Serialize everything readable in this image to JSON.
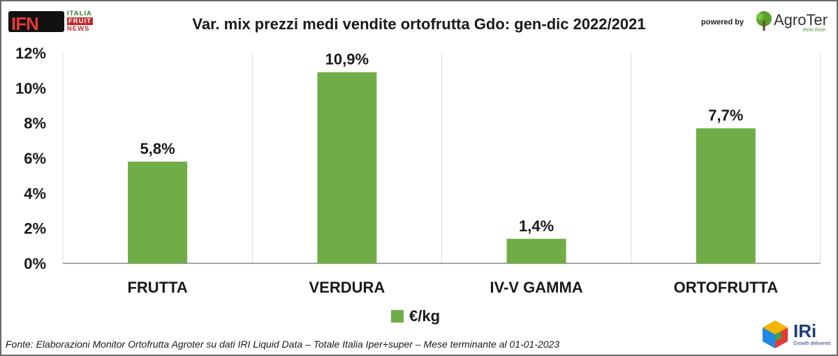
{
  "header": {
    "title": "Var. mix prezzi medi vendite ortofrutta Gdo: gen-dic 2022/2021",
    "ifn_logo": {
      "letters": "IFN",
      "line1": "ITALIA",
      "line2": "FRUIT",
      "line3": "NEWS"
    },
    "powered_by": "powered by",
    "agroter": {
      "name": "AgroTer",
      "tagline": "think fresh"
    }
  },
  "footer": {
    "source": "Fonte: Elaborazioni Monitor Ortofrutta Agroter su dati IRI Liquid Data – Totale Italia Iper+super – Mese terminante al 01-01-2023",
    "iri": {
      "name": "IRi",
      "tagline": "Growth delivered."
    }
  },
  "chart_data": {
    "type": "bar",
    "title": "Var. mix prezzi medi vendite ortofrutta Gdo: gen-dic 2022/2021",
    "categories": [
      "FRUTTA",
      "VERDURA",
      "IV-V GAMMA",
      "ORTOFRUTTA"
    ],
    "series": [
      {
        "name": "€/kg",
        "values": [
          5.8,
          10.9,
          1.4,
          7.7
        ],
        "labels": [
          "5,8%",
          "10,9%",
          "1,4%",
          "7,7%"
        ]
      }
    ],
    "ylim": [
      0,
      12
    ],
    "yticks": [
      0,
      2,
      4,
      6,
      8,
      10,
      12
    ],
    "ytick_labels": [
      "0%",
      "2%",
      "4%",
      "6%",
      "8%",
      "10%",
      "12%"
    ],
    "grid": "vertical category separators",
    "legend": "bottom-center",
    "colors": {
      "bar": "#70ad47",
      "grid": "#d9d9d9",
      "axis": "#888888"
    }
  }
}
